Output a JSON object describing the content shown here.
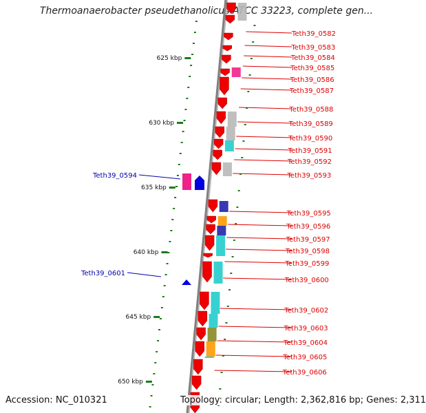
{
  "title": "Thermoanaerobacter pseudethanolicus ATCC 33223, complete gen...",
  "accession": "Accession: NC_010321",
  "topology": "Topology: circular; Length: 2,362,816 bp; Genes: 2,311",
  "kbp_ticks": [
    {
      "label": "625 kbp"
    },
    {
      "label": "630 kbp"
    },
    {
      "label": "635 kbp"
    },
    {
      "label": "640 kbp"
    },
    {
      "label": "645 kbp"
    },
    {
      "label": "650 kbp"
    }
  ],
  "colors": {
    "backbone": "#808080",
    "gene_red": "#ee0000",
    "gene_blue": "#0000dd",
    "label_red": "#dd0000",
    "label_blue": "#0000aa",
    "ticks_green": "#1a7a1a",
    "cog_cyan": "#22cccc",
    "cog_grey": "#b8b8b8",
    "cog_pink": "#ee2288",
    "cog_olive": "#888822",
    "cog_orange": "#ff9900",
    "cog_navy": "#2222aa"
  },
  "right_labels": [
    "Teth39_0582",
    "Teth39_0583",
    "Teth39_0584",
    "Teth39_0585",
    "Teth39_0586",
    "Teth39_0587",
    "Teth39_0588",
    "Teth39_0589",
    "Teth39_0590",
    "Teth39_0591",
    "Teth39_0592",
    "Teth39_0593",
    "Teth39_0595",
    "Teth39_0596",
    "Teth39_0597",
    "Teth39_0598",
    "Teth39_0599",
    "Teth39_0600",
    "Teth39_0602",
    "Teth39_0603",
    "Teth39_0604",
    "Teth39_0605",
    "Teth39_0606"
  ],
  "left_labels": [
    "Teth39_0594",
    "Teth39_0601"
  ]
}
